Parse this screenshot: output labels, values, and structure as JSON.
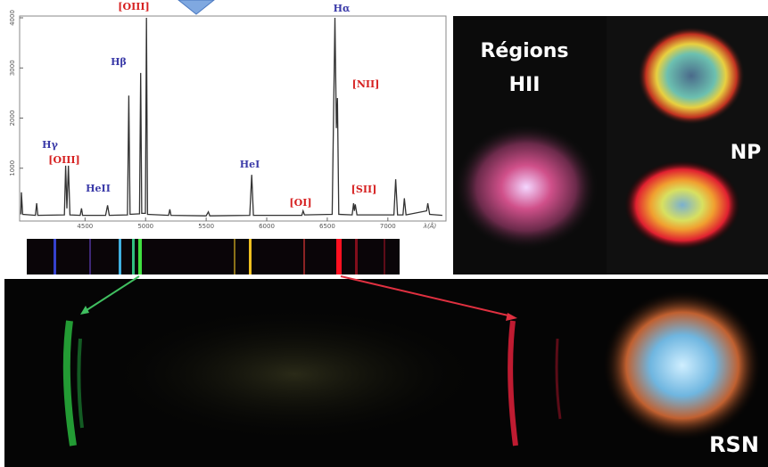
{
  "chart_data": {
    "type": "line",
    "x": [
      3970,
      3975,
      3985,
      4090,
      4101,
      4110,
      4330,
      4340,
      4350,
      4363,
      4375,
      4460,
      4471,
      4480,
      4670,
      4686,
      4700,
      4850,
      4861,
      4872,
      4950,
      4959,
      4968,
      4998,
      5007,
      5016,
      5190,
      5200,
      5210,
      5500,
      5518,
      5530,
      5860,
      5876,
      5890,
      6290,
      6300,
      6312,
      6540,
      6563,
      6575,
      6584,
      6595,
      6705,
      6717,
      6724,
      6731,
      6745,
      7050,
      7065,
      7080,
      7125,
      7136,
      7150,
      7320,
      7330,
      7345,
      7450
    ],
    "values": [
      80,
      520,
      80,
      60,
      300,
      60,
      70,
      1050,
      200,
      1050,
      70,
      60,
      200,
      60,
      60,
      260,
      60,
      70,
      2450,
      80,
      90,
      2900,
      100,
      100,
      4000,
      80,
      60,
      180,
      60,
      50,
      130,
      50,
      60,
      870,
      60,
      60,
      150,
      70,
      80,
      4000,
      1800,
      2400,
      80,
      70,
      300,
      150,
      280,
      70,
      70,
      780,
      70,
      70,
      400,
      70,
      150,
      300,
      80,
      60
    ],
    "color": "#333333",
    "xlim": [
      3960,
      7480
    ],
    "ylim": [
      0,
      4000
    ],
    "xticks": [
      4500,
      5000,
      5500,
      6000,
      6500,
      7000
    ],
    "yticks": [
      1000,
      2000,
      3000,
      4000
    ],
    "xlabel": "λ(Å)",
    "annotations": [
      {
        "text": "[OIII]",
        "color": "#d62020"
      },
      {
        "text": "Hα",
        "color": "#3a3aa8"
      },
      {
        "text": "Hβ",
        "color": "#3a3aa8"
      },
      {
        "text": "Hγ",
        "color": "#3a3aa8"
      },
      {
        "text": "[OIII]",
        "color": "#d62020"
      },
      {
        "text": "HeII",
        "color": "#3a3aa8"
      },
      {
        "text": "HeI",
        "color": "#3a3aa8"
      },
      {
        "text": "[OI]",
        "color": "#d62020"
      },
      {
        "text": "[NII]",
        "color": "#d62020"
      },
      {
        "text": "[SII]",
        "color": "#d62020"
      }
    ]
  },
  "labels": {
    "regions_line1": "Régions",
    "regions_line2": "HII",
    "np": "NP",
    "rsn": "RSN"
  }
}
